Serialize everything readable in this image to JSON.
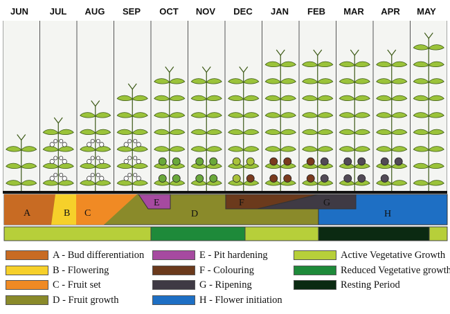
{
  "months": [
    "JUN",
    "JUL",
    "AUG",
    "SEP",
    "OCT",
    "NOV",
    "DEC",
    "JAN",
    "FEB",
    "MAR",
    "APR",
    "MAY"
  ],
  "plants": [
    {
      "nodes": 3,
      "fruits": "none",
      "fruit_rows": 0
    },
    {
      "nodes": 4,
      "fruits": "flowers",
      "fruit_rows": 3
    },
    {
      "nodes": 5,
      "fruits": "set",
      "fruit_rows": 3
    },
    {
      "nodes": 6,
      "fruits": "set",
      "fruit_rows": 3
    },
    {
      "nodes": 7,
      "fruits": "#6aa83a",
      "fruit_rows": 2
    },
    {
      "nodes": 7,
      "fruits": "#6aa83a",
      "fruit_rows": 2
    },
    {
      "nodes": 7,
      "fruits": "mixed-ripening",
      "fruit_rows": 2
    },
    {
      "nodes": 8,
      "fruits": "#7a3b1e",
      "fruit_rows": 2
    },
    {
      "nodes": 8,
      "fruits": "mixed-brown-dark",
      "fruit_rows": 2
    },
    {
      "nodes": 8,
      "fruits": "#524a56",
      "fruit_rows": 2
    },
    {
      "nodes": 8,
      "fruits": "#524a56",
      "fruit_rows": 2,
      "partial": true
    },
    {
      "nodes": 9,
      "fruits": "none",
      "fruit_rows": 0
    }
  ],
  "stages": {
    "A": {
      "label": "A",
      "color": "#c86b23"
    },
    "B": {
      "label": "B",
      "color": "#f6d02a"
    },
    "C": {
      "label": "C",
      "color": "#f08a24"
    },
    "D": {
      "label": "D",
      "color": "#8a8a2a"
    },
    "E": {
      "label": "E",
      "color": "#a64aa0"
    },
    "F": {
      "label": "F",
      "color": "#6b3a1c"
    },
    "G": {
      "label": "G",
      "color": "#3f3a44"
    },
    "H": {
      "label": "H",
      "color": "#1e6fc4"
    }
  },
  "growth_bar": {
    "segments": [
      {
        "from": "JUN",
        "to": "SEP",
        "color": "#b7cf3a"
      },
      {
        "from": "OCT",
        "to": "NOV",
        "color": "#1e8a3a"
      },
      {
        "from": "DEC",
        "to": "JAN",
        "color": "#b7cf3a"
      },
      {
        "from": "FEB",
        "to": "APR",
        "color": "#0b2a12"
      },
      {
        "from": "MAY",
        "to": "MAY",
        "color": "#b7cf3a"
      }
    ]
  },
  "legend": {
    "col1": [
      {
        "text": "A - Bud differentiation",
        "color": "#c86b23"
      },
      {
        "text": "B - Flowering",
        "color": "#f6d02a"
      },
      {
        "text": "C - Fruit set",
        "color": "#f08a24"
      },
      {
        "text": "D - Fruit growth",
        "color": "#8a8a2a"
      }
    ],
    "col2": [
      {
        "text": "E - Pit hardening",
        "color": "#a64aa0"
      },
      {
        "text": "F - Colouring",
        "color": "#6b3a1c"
      },
      {
        "text": "G - Ripening",
        "color": "#3f3a44"
      },
      {
        "text": "H - Flower initiation",
        "color": "#1e6fc4"
      }
    ],
    "col3": [
      {
        "text": "Active Vegetative Growth",
        "color": "#b7cf3a"
      },
      {
        "text": "Reduced Vegetative growth",
        "color": "#1e8a3a"
      },
      {
        "text": "Resting Period",
        "color": "#0b2a12"
      }
    ]
  }
}
